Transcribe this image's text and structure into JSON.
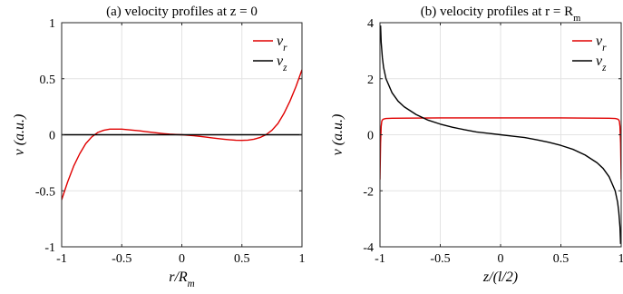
{
  "chart_data": [
    {
      "type": "line",
      "title": "(a)   velocity profiles at z = 0",
      "xlabel": "r/R_m",
      "ylabel": "v (a.u.)",
      "xlim": [
        -1,
        1
      ],
      "ylim": [
        -1,
        1
      ],
      "xticks": [
        -1,
        -0.5,
        0,
        0.5,
        1
      ],
      "yticks": [
        -1,
        -0.5,
        0,
        0.5,
        1
      ],
      "grid": true,
      "legend_position": "top-right",
      "series": [
        {
          "name": "v_r",
          "color": "#e00000",
          "x": [
            -1,
            -0.95,
            -0.9,
            -0.85,
            -0.8,
            -0.75,
            -0.7,
            -0.65,
            -0.6,
            -0.55,
            -0.5,
            -0.45,
            -0.4,
            -0.35,
            -0.3,
            -0.25,
            -0.2,
            -0.15,
            -0.1,
            -0.05,
            0,
            0.05,
            0.1,
            0.15,
            0.2,
            0.25,
            0.3,
            0.35,
            0.4,
            0.45,
            0.5,
            0.55,
            0.6,
            0.65,
            0.7,
            0.75,
            0.8,
            0.85,
            0.9,
            0.95,
            1
          ],
          "y": [
            -0.58,
            -0.42,
            -0.28,
            -0.17,
            -0.08,
            -0.02,
            0.02,
            0.04,
            0.05,
            0.05,
            0.05,
            0.045,
            0.04,
            0.035,
            0.028,
            0.022,
            0.016,
            0.01,
            0.005,
            0.002,
            0,
            -0.004,
            -0.009,
            -0.015,
            -0.021,
            -0.028,
            -0.034,
            -0.04,
            -0.045,
            -0.049,
            -0.05,
            -0.048,
            -0.04,
            -0.025,
            0.0,
            0.04,
            0.1,
            0.19,
            0.3,
            0.43,
            0.58
          ]
        },
        {
          "name": "v_z",
          "color": "#000000",
          "x": [
            -1,
            1
          ],
          "y": [
            0,
            0
          ]
        }
      ]
    },
    {
      "type": "line",
      "title": "(b)   velocity profiles at r = R_m",
      "xlabel": "z/(l/2)",
      "ylabel": "v (a.u.)",
      "xlim": [
        -1,
        1
      ],
      "ylim": [
        -4,
        4
      ],
      "xticks": [
        -1,
        -0.5,
        0,
        0.5,
        1
      ],
      "yticks": [
        -4,
        -2,
        0,
        2,
        4
      ],
      "grid": true,
      "legend_position": "top-right",
      "series": [
        {
          "name": "v_r",
          "color": "#e00000",
          "x": [
            -1,
            -0.995,
            -0.99,
            -0.985,
            -0.98,
            -0.97,
            -0.95,
            -0.9,
            -0.5,
            0,
            0.5,
            0.9,
            0.95,
            0.97,
            0.98,
            0.985,
            0.99,
            0.995,
            1
          ],
          "y": [
            -1.6,
            -0.3,
            0.3,
            0.48,
            0.53,
            0.56,
            0.58,
            0.59,
            0.6,
            0.6,
            0.6,
            0.59,
            0.58,
            0.56,
            0.53,
            0.48,
            0.3,
            -0.3,
            -1.6
          ]
        },
        {
          "name": "v_z",
          "color": "#000000",
          "x": [
            -0.995,
            -0.99,
            -0.98,
            -0.97,
            -0.95,
            -0.9,
            -0.85,
            -0.8,
            -0.7,
            -0.6,
            -0.5,
            -0.4,
            -0.3,
            -0.2,
            -0.1,
            0,
            0.1,
            0.2,
            0.3,
            0.4,
            0.5,
            0.6,
            0.7,
            0.8,
            0.85,
            0.9,
            0.95,
            0.97,
            0.98,
            0.99,
            0.995
          ],
          "y": [
            3.9,
            3.3,
            2.75,
            2.4,
            2.0,
            1.5,
            1.2,
            1.0,
            0.72,
            0.52,
            0.38,
            0.27,
            0.18,
            0.1,
            0.05,
            0,
            -0.05,
            -0.1,
            -0.18,
            -0.27,
            -0.38,
            -0.52,
            -0.72,
            -1.0,
            -1.2,
            -1.5,
            -2.0,
            -2.4,
            -2.75,
            -3.3,
            -3.9
          ]
        }
      ]
    }
  ]
}
